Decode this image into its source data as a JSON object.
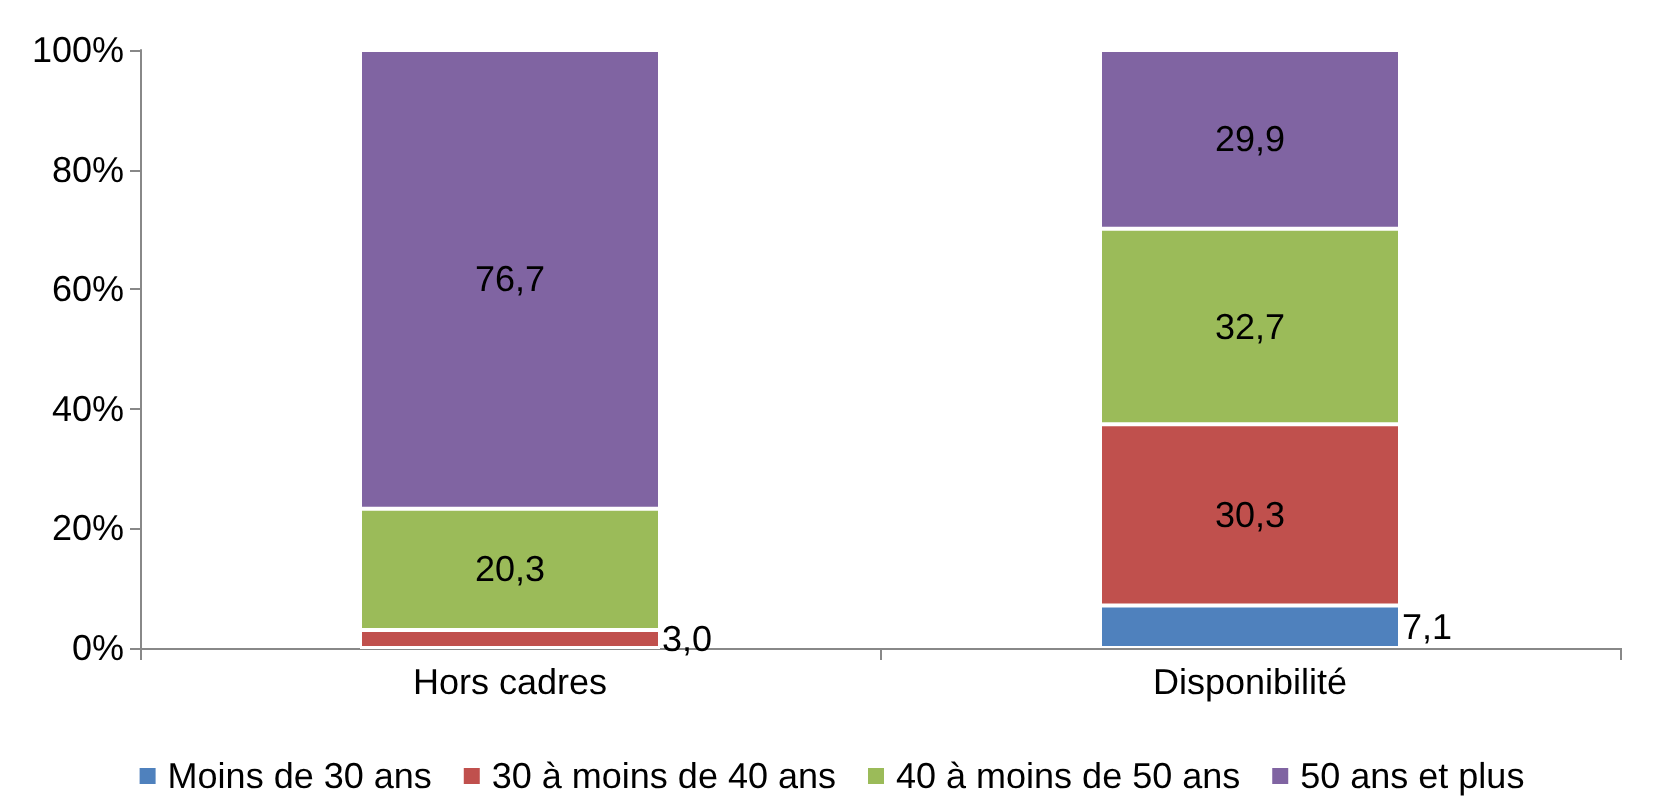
{
  "chart_data": {
    "type": "bar",
    "stacked": true,
    "categories": [
      "Hors cadres",
      "Disponibilité"
    ],
    "series": [
      {
        "name": "Moins de 30 ans",
        "color": "#4f81bd",
        "values": [
          0,
          7.1
        ],
        "value_labels": [
          null,
          "7,1"
        ]
      },
      {
        "name": "30 à moins de 40 ans",
        "color": "#c0504d",
        "values": [
          3.0,
          30.3
        ],
        "value_labels": [
          "3,0",
          "30,3"
        ]
      },
      {
        "name": "40 à moins de 50 ans",
        "color": "#9bbb59",
        "values": [
          20.3,
          32.7
        ],
        "value_labels": [
          "20,3",
          "32,7"
        ]
      },
      {
        "name": "50 ans et plus",
        "color": "#8064a2",
        "values": [
          76.7,
          29.9
        ],
        "value_labels": [
          "76,7",
          "29,9"
        ]
      }
    ],
    "ylim": [
      0,
      100
    ],
    "yticks": [
      {
        "value": 0,
        "label": "0%"
      },
      {
        "value": 20,
        "label": "20%"
      },
      {
        "value": 40,
        "label": "40%"
      },
      {
        "value": 60,
        "label": "60%"
      },
      {
        "value": 80,
        "label": "80%"
      },
      {
        "value": 100,
        "label": "100%"
      }
    ],
    "grid": false,
    "legend": "bottom"
  }
}
